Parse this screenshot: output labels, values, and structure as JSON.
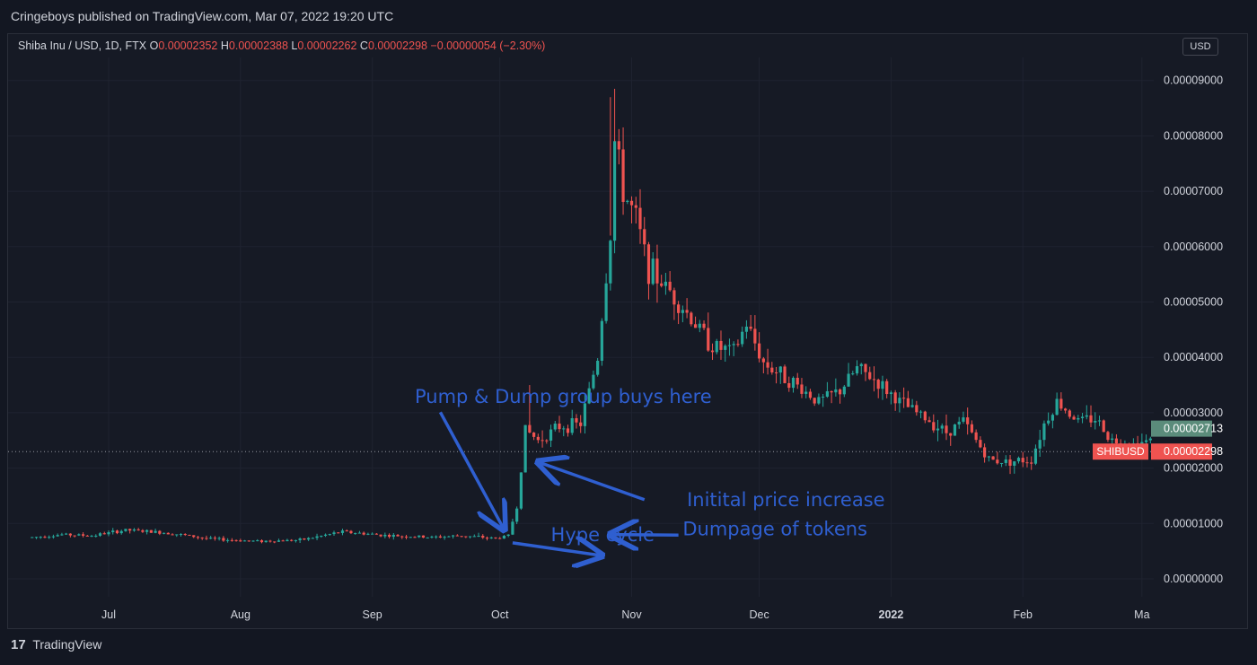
{
  "header": {
    "publisher": "Cringeboys published on TradingView.com, Mar 07, 2022 19:20 UTC"
  },
  "legend": {
    "symbol": "Shiba Inu / USD, 1D, FTX",
    "open_label": "O",
    "open": "0.00002352",
    "high_label": "H",
    "high": "0.00002388",
    "low_label": "L",
    "low": "0.00002262",
    "close_label": "C",
    "close": "0.00002298",
    "change": "−0.00000054 (−2.30%)"
  },
  "currency_button": "USD",
  "footer": {
    "brand": "TradingView",
    "logo": "17"
  },
  "colors": {
    "up": "#26a69a",
    "down": "#ef5350",
    "annotation": "#2f5fd0",
    "background": "#161a25",
    "grid": "#1f2330"
  },
  "chart_data": {
    "type": "candlestick",
    "y_axis": {
      "min": 0,
      "max": 9e-05,
      "ticks": [
        "0.00009000",
        "0.00008000",
        "0.00007000",
        "0.00006000",
        "0.00005000",
        "0.00004000",
        "0.00003000",
        "0.00002000",
        "0.00001000",
        "0.00000000"
      ]
    },
    "x_axis": {
      "ticks": [
        "Jul",
        "Aug",
        "Sep",
        "Oct",
        "Nov",
        "Dec",
        "2022",
        "Feb",
        "Ma"
      ]
    },
    "price_labels": [
      {
        "text": "0.00002713",
        "value": 2.713e-05,
        "color": "#5b8c7b"
      },
      {
        "symbol": "SHIBUSD",
        "text": "0.00002298",
        "value": 2.298e-05,
        "color": "#ef5350"
      }
    ],
    "last_price_line": 2.298e-05,
    "annotations": [
      {
        "text": "Dumpage of tokens",
        "x_date": "2021-11-13",
        "y": 7.9e-06
      },
      {
        "text": "Hype cycle",
        "x_date": "2021-10-13",
        "y": 6.8e-06
      },
      {
        "text": "Pump & Dump group buys here",
        "x_date": "2021-09-11",
        "y": 3.18e-05
      },
      {
        "text": "Initital price increase",
        "x_date": "2021-11-14",
        "y": 1.31e-05
      }
    ],
    "arrows": [
      {
        "from": [
          "2021-11-12",
          7.9e-06
        ],
        "to": [
          "2021-10-27",
          8e-06
        ]
      },
      {
        "from": [
          "2021-10-04",
          6.5e-06
        ],
        "to": [
          "2021-10-25",
          4.2e-06
        ]
      },
      {
        "from": [
          "2021-09-17",
          3.01e-05
        ],
        "to": [
          "2021-10-02",
          8.9e-06
        ]
      },
      {
        "from": [
          "2021-11-04",
          1.43e-05
        ],
        "to": [
          "2021-10-10",
          2.11e-05
        ]
      }
    ],
    "price_path": [
      [
        "2021-06-13",
        7.5e-06
      ],
      [
        "2021-06-20",
        8e-06
      ],
      [
        "2021-06-27",
        7.8e-06
      ],
      [
        "2021-07-05",
        8.8e-06
      ],
      [
        "2021-07-15",
        8.3e-06
      ],
      [
        "2021-07-25",
        7.2e-06
      ],
      [
        "2021-08-05",
        6.8e-06
      ],
      [
        "2021-08-15",
        7e-06
      ],
      [
        "2021-08-25",
        8.5e-06
      ],
      [
        "2021-09-05",
        7.8e-06
      ],
      [
        "2021-09-15",
        7.5e-06
      ],
      [
        "2021-09-22",
        7.8e-06
      ],
      [
        "2021-09-30",
        7.3e-06
      ],
      [
        "2021-10-03",
        7.8e-06
      ],
      [
        "2021-10-05",
        1.3e-05
      ],
      [
        "2021-10-07",
        2.7e-05
      ],
      [
        "2021-10-10",
        2.5e-05
      ],
      [
        "2021-10-15",
        2.75e-05
      ],
      [
        "2021-10-20",
        2.8e-05
      ],
      [
        "2021-10-24",
        4e-05
      ],
      [
        "2021-10-27",
        6.2e-05
      ],
      [
        "2021-10-28",
        7.9e-05
      ],
      [
        "2021-10-30",
        7e-05
      ],
      [
        "2021-11-02",
        6.5e-05
      ],
      [
        "2021-11-05",
        5.6e-05
      ],
      [
        "2021-11-10",
        5.2e-05
      ],
      [
        "2021-11-15",
        4.7e-05
      ],
      [
        "2021-11-20",
        4.2e-05
      ],
      [
        "2021-11-25",
        4.1e-05
      ],
      [
        "2021-11-28",
        4.6e-05
      ],
      [
        "2021-12-02",
        3.9e-05
      ],
      [
        "2021-12-08",
        3.6e-05
      ],
      [
        "2021-12-15",
        3.2e-05
      ],
      [
        "2021-12-20",
        3.4e-05
      ],
      [
        "2021-12-24",
        3.8e-05
      ],
      [
        "2021-12-28",
        3.6e-05
      ],
      [
        "2022-01-03",
        3.2e-05
      ],
      [
        "2022-01-08",
        2.95e-05
      ],
      [
        "2022-01-14",
        2.65e-05
      ],
      [
        "2022-01-18",
        2.85e-05
      ],
      [
        "2022-01-21",
        2.5e-05
      ],
      [
        "2022-01-24",
        2.15e-05
      ],
      [
        "2022-01-28",
        2.12e-05
      ],
      [
        "2022-02-03",
        2.15e-05
      ],
      [
        "2022-02-06",
        2.8e-05
      ],
      [
        "2022-02-09",
        3.2e-05
      ],
      [
        "2022-02-14",
        2.85e-05
      ],
      [
        "2022-02-18",
        2.9e-05
      ],
      [
        "2022-02-22",
        2.5e-05
      ],
      [
        "2022-02-27",
        2.42e-05
      ],
      [
        "2022-03-03",
        2.5e-05
      ]
    ]
  }
}
